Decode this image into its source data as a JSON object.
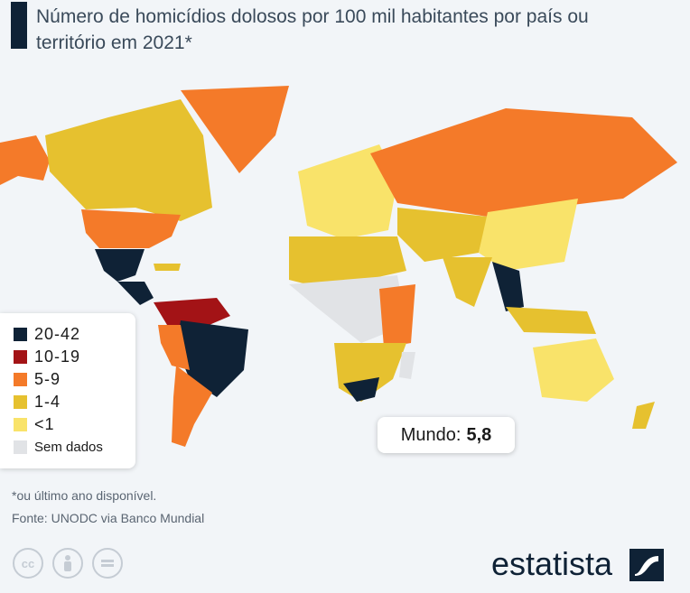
{
  "title": "Número de homicídios dolosos por 100 mil habitantes por país ou território em 2021*",
  "legend": [
    {
      "label": "20-42",
      "color": "#0f2236"
    },
    {
      "label": "10-19",
      "color": "#a31316"
    },
    {
      "label": "5-9",
      "color": "#f47a29"
    },
    {
      "label": "1-4",
      "color": "#e6c12f"
    },
    {
      "label": "<1",
      "color": "#f9e36a"
    },
    {
      "label": "Sem dados",
      "color": "#e1e3e6"
    }
  ],
  "world": {
    "label": "Mundo:",
    "value": "5,8"
  },
  "footnote": "*ou último ano disponível.",
  "source": "Fonte: UNODC via Banco Mundial",
  "license_icons": [
    "cc-icon",
    "attribution-icon",
    "no-derivatives-icon"
  ],
  "brand": "estatista"
}
